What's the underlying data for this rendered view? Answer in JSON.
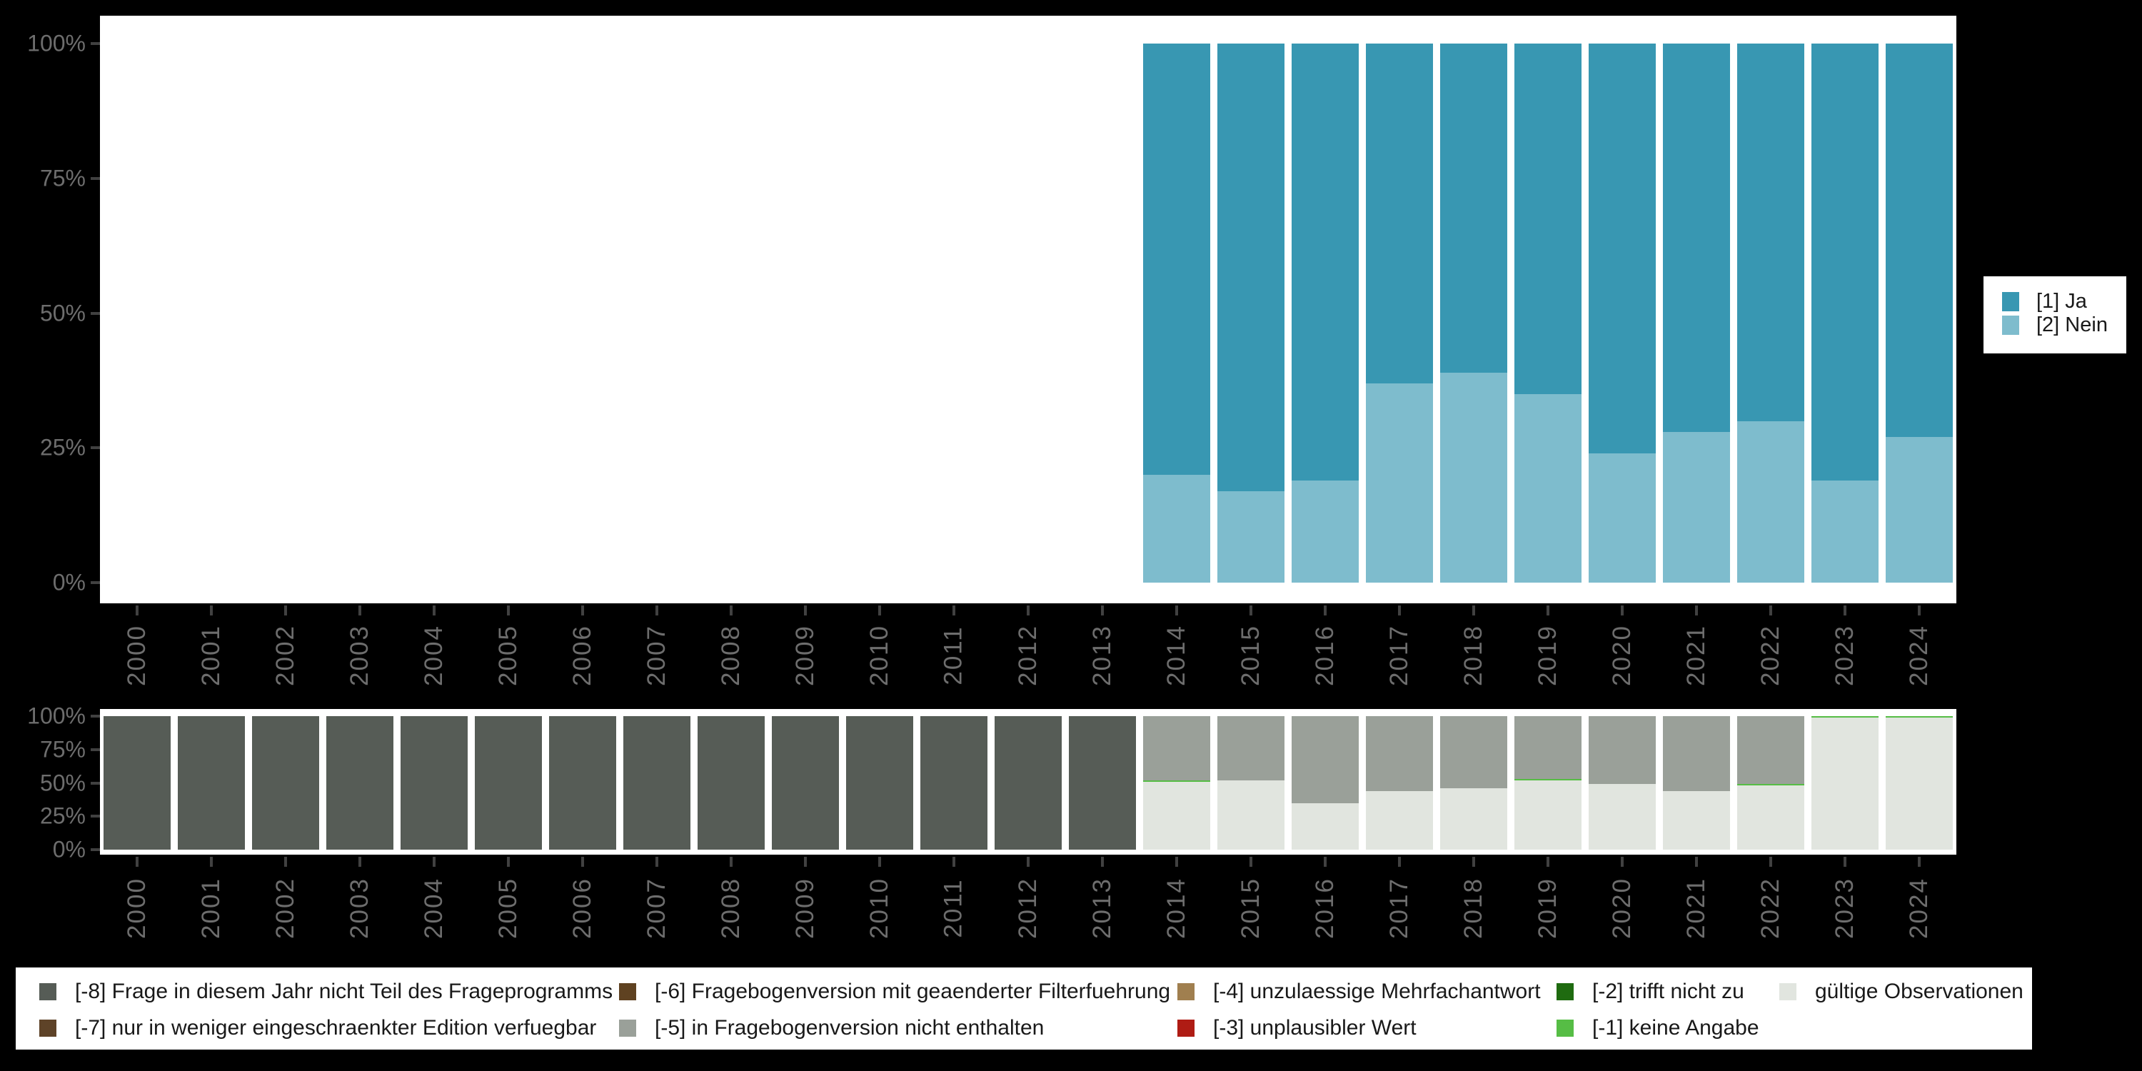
{
  "page": {
    "background": "#000000"
  },
  "axis": {
    "y_tick_labels": [
      "0%",
      "25%",
      "50%",
      "75%",
      "100%"
    ],
    "years": [
      "2000",
      "2001",
      "2002",
      "2003",
      "2004",
      "2005",
      "2006",
      "2007",
      "2008",
      "2009",
      "2010",
      "2011",
      "2012",
      "2013",
      "2014",
      "2015",
      "2016",
      "2017",
      "2018",
      "2019",
      "2020",
      "2021",
      "2022",
      "2023",
      "2024"
    ]
  },
  "chart_data": [
    {
      "type": "bar",
      "stacked": true,
      "title": "",
      "xlabel": "",
      "ylabel": "",
      "unit": "percent",
      "ylim": [
        0,
        100
      ],
      "grid": false,
      "legend_position": "right",
      "y_ticks": [
        "0%",
        "25%",
        "50%",
        "75%",
        "100%"
      ],
      "categories": [
        "2000",
        "2001",
        "2002",
        "2003",
        "2004",
        "2005",
        "2006",
        "2007",
        "2008",
        "2009",
        "2010",
        "2011",
        "2012",
        "2013",
        "2014",
        "2015",
        "2016",
        "2017",
        "2018",
        "2019",
        "2020",
        "2021",
        "2022",
        "2023",
        "2024"
      ],
      "series": [
        {
          "name": "[1] Ja",
          "color": "#3897b2",
          "values": [
            null,
            null,
            null,
            null,
            null,
            null,
            null,
            null,
            null,
            null,
            null,
            null,
            null,
            null,
            80,
            83,
            81,
            63,
            61,
            65,
            76,
            72,
            70,
            81,
            73
          ]
        },
        {
          "name": "[2] Nein",
          "color": "#7ebccd",
          "values": [
            null,
            null,
            null,
            null,
            null,
            null,
            null,
            null,
            null,
            null,
            null,
            null,
            null,
            null,
            20,
            17,
            19,
            37,
            39,
            35,
            24,
            28,
            30,
            19,
            27
          ]
        }
      ]
    },
    {
      "type": "bar",
      "stacked": true,
      "title": "",
      "xlabel": "",
      "ylabel": "",
      "unit": "percent",
      "ylim": [
        0,
        100
      ],
      "grid": false,
      "legend_position": "bottom",
      "y_ticks": [
        "0%",
        "25%",
        "50%",
        "75%",
        "100%"
      ],
      "categories": [
        "2000",
        "2001",
        "2002",
        "2003",
        "2004",
        "2005",
        "2006",
        "2007",
        "2008",
        "2009",
        "2010",
        "2011",
        "2012",
        "2013",
        "2014",
        "2015",
        "2016",
        "2017",
        "2018",
        "2019",
        "2020",
        "2021",
        "2022",
        "2023",
        "2024"
      ],
      "series": [
        {
          "name": "[-8] Frage in diesem Jahr nicht Teil des Frageprogramms",
          "color": "#565c56",
          "values": [
            100,
            100,
            100,
            100,
            100,
            100,
            100,
            100,
            100,
            100,
            100,
            100,
            100,
            100,
            null,
            null,
            null,
            null,
            null,
            null,
            null,
            null,
            null,
            null,
            null
          ]
        },
        {
          "name": "[-5] in Fragebogenversion nicht enthalten",
          "color": "#9aa099",
          "values": [
            null,
            null,
            null,
            null,
            null,
            null,
            null,
            null,
            null,
            null,
            null,
            null,
            null,
            null,
            48,
            48,
            65,
            56,
            54,
            47,
            51,
            56,
            51,
            null,
            null
          ]
        },
        {
          "name": "[-1] keine Angabe",
          "color": "#56bd45",
          "values": [
            null,
            null,
            null,
            null,
            null,
            null,
            null,
            null,
            null,
            null,
            null,
            null,
            null,
            null,
            1,
            null,
            null,
            null,
            null,
            1,
            null,
            null,
            1,
            1,
            1
          ]
        },
        {
          "name": "gültige Observationen",
          "color": "#e1e5df",
          "values": [
            null,
            null,
            null,
            null,
            null,
            null,
            null,
            null,
            null,
            null,
            null,
            null,
            null,
            null,
            51,
            52,
            35,
            44,
            46,
            52,
            49,
            44,
            48,
            99,
            99
          ]
        }
      ]
    }
  ],
  "ja_nein_legend": {
    "items": [
      {
        "label": "[1] Ja",
        "color": "#3897b2"
      },
      {
        "label": "[2] Nein",
        "color": "#7ebccd"
      }
    ]
  },
  "missings_legend": {
    "items": [
      {
        "label": "[-8] Frage in diesem Jahr nicht Teil des Frageprogramms",
        "color": "#565c56"
      },
      {
        "label": "[-6] Fragebogenversion mit geaenderter Filterfuehrung",
        "color": "#5f4221"
      },
      {
        "label": "[-4] unzulaessige Mehrfachantwort",
        "color": "#a07f4f"
      },
      {
        "label": "[-2] trifft nicht zu",
        "color": "#1f6b10"
      },
      {
        "label": "gültige Observationen",
        "color": "#e1e5df"
      },
      {
        "label": "[-7] nur in weniger eingeschraenkter Edition verfuegbar",
        "color": "#5e4328"
      },
      {
        "label": "[-5] in Fragebogenversion nicht enthalten",
        "color": "#9aa099"
      },
      {
        "label": "[-3] unplausibler Wert",
        "color": "#af1c14"
      },
      {
        "label": "[-1] keine Angabe",
        "color": "#56bd45"
      }
    ]
  }
}
